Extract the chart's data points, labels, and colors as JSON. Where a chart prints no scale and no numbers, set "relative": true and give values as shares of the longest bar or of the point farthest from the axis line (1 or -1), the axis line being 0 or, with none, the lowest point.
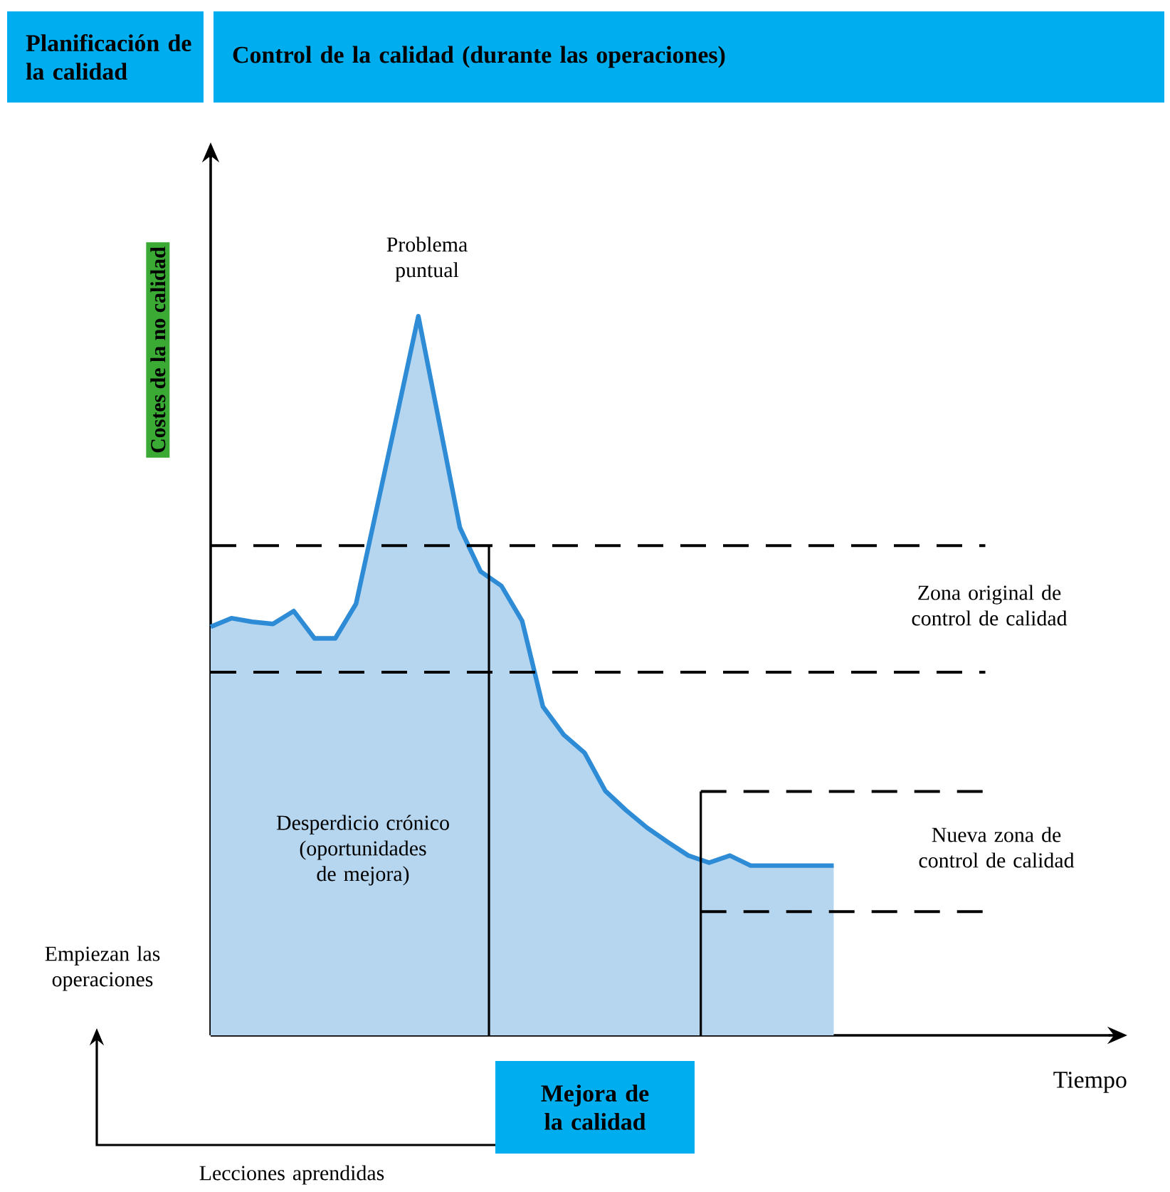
{
  "chart_data": {
    "type": "area",
    "relative": true,
    "ylabel": "Costes de la no calidad",
    "xlabel": "Tiempo",
    "color": "#2e8bd5",
    "categories": [
      null,
      null,
      null,
      null,
      null,
      null,
      null,
      null,
      null,
      null,
      null,
      null,
      null,
      null,
      null,
      null,
      null,
      null,
      null,
      null,
      null,
      null,
      null,
      null,
      null,
      null,
      null,
      null,
      null,
      null,
      null,
      null,
      null,
      null,
      null,
      null,
      null,
      null,
      null,
      null,
      null,
      null,
      null,
      null,
      null
    ],
    "values": [
      0.568,
      0.58,
      0.575,
      0.572,
      0.59,
      0.552,
      0.552,
      0.6,
      0.733,
      0.866,
      1,
      0.853,
      0.706,
      0.645,
      0.625,
      0.576,
      0.457,
      0.418,
      0.393,
      0.34,
      0.313,
      0.289,
      0.269,
      0.25,
      0.24,
      0.25,
      0.236,
      0.236,
      0.236,
      0.236,
      0.236,
      null,
      null,
      null,
      null,
      null,
      null,
      null,
      null,
      null,
      null,
      null,
      null,
      null,
      null
    ],
    "ref_lines": [
      {
        "axis": "y",
        "value": 0.681,
        "line_style": "dashed",
        "color": "#000000"
      },
      {
        "axis": "y",
        "value": 0.505,
        "line_style": "dashed",
        "color": "#000000"
      },
      {
        "axis": "y",
        "value": 0.339,
        "line_style": "dashed",
        "color": "#000000"
      },
      {
        "axis": "y",
        "value": 0.172,
        "line_style": "dashed",
        "color": "#000000"
      }
    ],
    "annotations": [
      "Planificación de la calidad",
      "Control de la calidad (durante las operaciones)",
      "Problema puntual",
      "Zona original de control de calidad",
      "Desperdicio crónico (oportunidades de mejora)",
      "Nueva zona de control de calidad",
      "Empiezan las operaciones",
      "Mejora de la calidad",
      "Lecciones aprendidas"
    ],
    "marker": "none",
    "line_style": "solid"
  }
}
